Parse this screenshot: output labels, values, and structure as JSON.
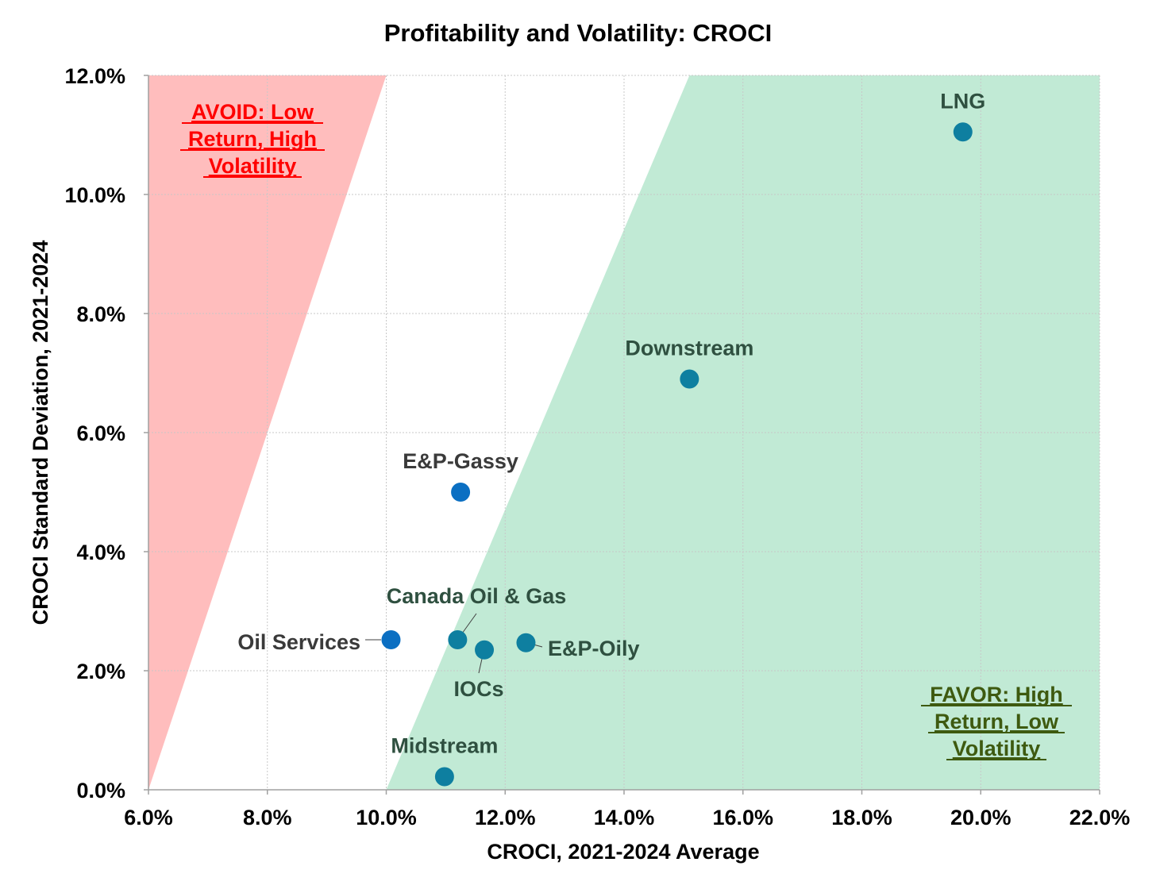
{
  "chart_data": {
    "type": "scatter",
    "title": "Profitability and Volatility: CROCI",
    "xlabel": "CROCI, 2021-2024 Average",
    "ylabel": "CROCI Standard Deviation, 2021-2024",
    "xlim": [
      6.0,
      22.0
    ],
    "ylim": [
      0.0,
      12.0
    ],
    "x_ticks": [
      6,
      8,
      10,
      12,
      14,
      16,
      18,
      20,
      22
    ],
    "y_ticks": [
      0,
      2,
      4,
      6,
      8,
      10,
      12
    ],
    "x_tick_labels": [
      "6.0%",
      "8.0%",
      "10.0%",
      "12.0%",
      "14.0%",
      "16.0%",
      "18.0%",
      "20.0%",
      "22.0%"
    ],
    "y_tick_labels": [
      "0.0%",
      "2.0%",
      "4.0%",
      "6.0%",
      "8.0%",
      "10.0%",
      "12.0%"
    ],
    "grid": true,
    "points": [
      {
        "label": "LNG",
        "x": 19.7,
        "y": 11.05,
        "color": "#0e7fa0",
        "label_color": "#2f5040"
      },
      {
        "label": "Downstream",
        "x": 15.1,
        "y": 6.9,
        "color": "#0e7fa0",
        "label_color": "#2f5040"
      },
      {
        "label": "E&P-Gassy",
        "x": 11.25,
        "y": 5.0,
        "color": "#0b6fc2",
        "label_color": "#3a3a3a"
      },
      {
        "label": "Canada Oil & Gas",
        "x": 11.2,
        "y": 2.52,
        "color": "#0e7fa0",
        "label_color": "#2f5040"
      },
      {
        "label": "Oil Services",
        "x": 10.08,
        "y": 2.52,
        "color": "#0b6fc2",
        "label_color": "#3a3a3a"
      },
      {
        "label": "IOCs",
        "x": 11.65,
        "y": 2.35,
        "color": "#0e7fa0",
        "label_color": "#2f5040"
      },
      {
        "label": "E&P-Oily",
        "x": 12.35,
        "y": 2.47,
        "color": "#0e7fa0",
        "label_color": "#2f5040"
      },
      {
        "label": "Midstream",
        "x": 10.98,
        "y": 0.22,
        "color": "#0e7fa0",
        "label_color": "#2f5040"
      }
    ],
    "regions": [
      {
        "name": "avoid",
        "label_lines": [
          "AVOID: Low",
          "Return, High",
          "Volatility"
        ],
        "fill": "#ffbdbd",
        "text_color": "#ff0000",
        "polygon": [
          [
            6.0,
            0.0
          ],
          [
            6.0,
            12.0
          ],
          [
            10.0,
            12.0
          ]
        ]
      },
      {
        "name": "favor",
        "label_lines": [
          "FAVOR: High",
          "Return, Low",
          "Volatility"
        ],
        "fill": "#c1ead5",
        "text_color": "#3e5a10",
        "polygon": [
          [
            10.0,
            0.0
          ],
          [
            15.1,
            12.0
          ],
          [
            22.0,
            12.0
          ],
          [
            22.0,
            0.0
          ]
        ]
      }
    ]
  }
}
